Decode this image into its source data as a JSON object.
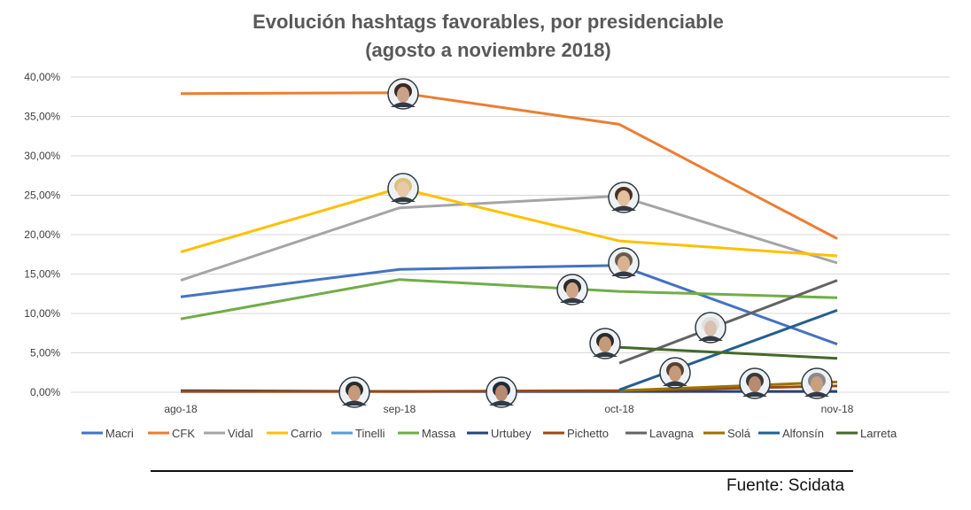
{
  "chart_data": {
    "type": "line",
    "title_lines": [
      "Evolución hashtags favorables, por presidenciable",
      "(agosto a noviembre 2018)"
    ],
    "categories": [
      "ago-18",
      "sep-18",
      "oct-18",
      "nov-18"
    ],
    "y_ticks": [
      "0,00%",
      "5,00%",
      "10,00%",
      "15,00%",
      "20,00%",
      "25,00%",
      "30,00%",
      "35,00%",
      "40,00%"
    ],
    "ylim": [
      0,
      40
    ],
    "grid": true,
    "legend_position": "bottom",
    "series": [
      {
        "name": "Macri",
        "color": "#4472C4",
        "values": [
          12.1,
          15.6,
          16.1,
          6.1
        ]
      },
      {
        "name": "CFK",
        "color": "#ED7D31",
        "values": [
          37.9,
          38.0,
          34.0,
          19.5
        ]
      },
      {
        "name": "Vidal",
        "color": "#A5A5A5",
        "values": [
          14.2,
          23.4,
          24.9,
          16.4
        ]
      },
      {
        "name": "Carrio",
        "color": "#FFC000",
        "values": [
          17.8,
          25.9,
          19.2,
          17.3
        ]
      },
      {
        "name": "Tinelli",
        "color": "#5B9BD5",
        "values": [
          0.1,
          0.1,
          0.1,
          0.1
        ]
      },
      {
        "name": "Massa",
        "color": "#70AD47",
        "values": [
          9.3,
          14.3,
          12.8,
          12.0
        ]
      },
      {
        "name": "Urtubey",
        "color": "#264478",
        "values": [
          0.2,
          0.1,
          0.1,
          0.1
        ]
      },
      {
        "name": "Pichetto",
        "color": "#9E480E",
        "values": [
          0.1,
          0.1,
          0.2,
          0.8
        ]
      },
      {
        "name": "Lavagna",
        "color": "#636363",
        "values": [
          null,
          null,
          3.7,
          14.2
        ]
      },
      {
        "name": "Solá",
        "color": "#997300",
        "values": [
          null,
          null,
          0.2,
          1.3
        ]
      },
      {
        "name": "Alfonsín",
        "color": "#255E91",
        "values": [
          null,
          null,
          0.3,
          10.4
        ]
      },
      {
        "name": "Larreta",
        "color": "#43682B",
        "values": [
          null,
          null,
          5.7,
          4.3
        ]
      }
    ]
  },
  "source": "Fuente: Scidata"
}
